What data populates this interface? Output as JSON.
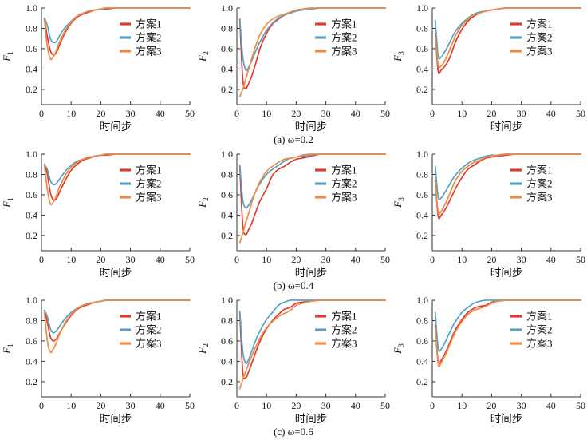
{
  "figure": {
    "background": "#ffffff"
  },
  "chart_data": {
    "type": "line",
    "xlabel": "时间步",
    "legend": [
      "方案1",
      "方案2",
      "方案3"
    ],
    "series_colors": [
      "#df3b2f",
      "#55a2c2",
      "#f08a45"
    ],
    "axis_color": "#333333",
    "text_color": "#111111",
    "xlim": [
      0,
      50
    ],
    "ylim": [
      0.05,
      1.0
    ],
    "xticks": [
      0,
      10,
      20,
      30,
      40,
      50
    ],
    "xtick_labels": [
      "0",
      "10",
      "20",
      "30",
      "40",
      "50"
    ],
    "yticks": [
      0.2,
      0.4,
      0.6,
      0.8,
      1.0
    ],
    "ytick_labels": [
      "0.2",
      "0.4",
      "0.6",
      "0.8",
      "1.0"
    ],
    "legend_position": "top-right",
    "grid": false,
    "captions": [
      "(a) ω=0.2",
      "(b) ω=0.4",
      "(c) ω=0.6"
    ],
    "x": [
      1,
      2,
      3,
      4,
      5,
      6,
      7,
      8,
      10,
      12,
      14,
      16,
      18,
      20,
      22,
      25,
      28,
      30,
      40,
      50
    ],
    "charts": [
      {
        "id": "a-F1",
        "omega": 0.2,
        "ylabel_base": "F",
        "ylabel_sub": "1",
        "series": [
          [
            0.89,
            0.72,
            0.58,
            0.54,
            0.56,
            0.63,
            0.7,
            0.76,
            0.85,
            0.91,
            0.94,
            0.96,
            0.98,
            0.99,
            0.99,
            1.0,
            1.0,
            1.0,
            1.0,
            1.0
          ],
          [
            0.9,
            0.83,
            0.7,
            0.66,
            0.67,
            0.72,
            0.77,
            0.81,
            0.87,
            0.92,
            0.95,
            0.97,
            0.98,
            0.99,
            1.0,
            1.0,
            1.0,
            1.0,
            1.0,
            1.0
          ],
          [
            0.88,
            0.62,
            0.5,
            0.52,
            0.58,
            0.66,
            0.72,
            0.78,
            0.86,
            0.92,
            0.95,
            0.97,
            0.98,
            0.99,
            1.0,
            1.0,
            1.0,
            1.0,
            1.0,
            1.0
          ]
        ]
      },
      {
        "id": "a-F2",
        "omega": 0.2,
        "ylabel_base": "F",
        "ylabel_sub": "2",
        "series": [
          [
            0.89,
            0.3,
            0.21,
            0.26,
            0.33,
            0.42,
            0.52,
            0.62,
            0.75,
            0.84,
            0.89,
            0.93,
            0.95,
            0.97,
            0.98,
            0.99,
            1.0,
            1.0,
            1.0,
            1.0
          ],
          [
            0.88,
            0.52,
            0.39,
            0.42,
            0.48,
            0.55,
            0.62,
            0.68,
            0.78,
            0.85,
            0.9,
            0.93,
            0.95,
            0.97,
            0.98,
            0.99,
            1.0,
            1.0,
            1.0,
            1.0
          ],
          [
            0.13,
            0.2,
            0.3,
            0.4,
            0.5,
            0.6,
            0.68,
            0.75,
            0.84,
            0.89,
            0.92,
            0.94,
            0.96,
            0.98,
            0.99,
            1.0,
            1.0,
            1.0,
            1.0,
            1.0
          ]
        ]
      },
      {
        "id": "a-F3",
        "omega": 0.2,
        "ylabel_base": "F",
        "ylabel_sub": "3",
        "series": [
          [
            0.75,
            0.38,
            0.39,
            0.42,
            0.46,
            0.52,
            0.6,
            0.68,
            0.79,
            0.87,
            0.92,
            0.95,
            0.97,
            0.98,
            0.99,
            1.0,
            1.0,
            1.0,
            1.0,
            1.0
          ],
          [
            0.88,
            0.53,
            0.52,
            0.56,
            0.61,
            0.67,
            0.73,
            0.78,
            0.85,
            0.9,
            0.94,
            0.96,
            0.97,
            0.98,
            0.99,
            1.0,
            1.0,
            1.0,
            1.0,
            1.0
          ],
          [
            0.72,
            0.44,
            0.43,
            0.47,
            0.53,
            0.6,
            0.67,
            0.74,
            0.83,
            0.89,
            0.93,
            0.95,
            0.97,
            0.98,
            0.99,
            1.0,
            1.0,
            1.0,
            1.0,
            1.0
          ]
        ]
      },
      {
        "id": "b-F1",
        "omega": 0.4,
        "ylabel_base": "F",
        "ylabel_sub": "1",
        "series": [
          [
            0.9,
            0.8,
            0.62,
            0.55,
            0.56,
            0.62,
            0.68,
            0.74,
            0.84,
            0.9,
            0.94,
            0.96,
            0.98,
            0.99,
            0.99,
            1.0,
            1.0,
            1.0,
            1.0,
            1.0
          ],
          [
            0.9,
            0.85,
            0.74,
            0.7,
            0.71,
            0.75,
            0.79,
            0.83,
            0.89,
            0.93,
            0.95,
            0.97,
            0.98,
            0.99,
            1.0,
            1.0,
            1.0,
            1.0,
            1.0,
            1.0
          ],
          [
            0.89,
            0.65,
            0.51,
            0.53,
            0.59,
            0.67,
            0.73,
            0.79,
            0.87,
            0.92,
            0.95,
            0.97,
            0.98,
            0.99,
            1.0,
            1.0,
            1.0,
            1.0,
            1.0,
            1.0
          ]
        ]
      },
      {
        "id": "b-F2",
        "omega": 0.4,
        "ylabel_base": "F",
        "ylabel_sub": "2",
        "series": [
          [
            0.88,
            0.3,
            0.21,
            0.26,
            0.32,
            0.4,
            0.48,
            0.55,
            0.66,
            0.79,
            0.85,
            0.88,
            0.92,
            0.95,
            0.96,
            0.98,
            1.0,
            1.0,
            1.0,
            1.0
          ],
          [
            0.89,
            0.55,
            0.47,
            0.5,
            0.55,
            0.61,
            0.67,
            0.72,
            0.8,
            0.85,
            0.89,
            0.93,
            0.96,
            0.97,
            0.98,
            0.99,
            1.0,
            1.0,
            1.0,
            1.0
          ],
          [
            0.13,
            0.22,
            0.33,
            0.42,
            0.52,
            0.61,
            0.68,
            0.74,
            0.83,
            0.88,
            0.92,
            0.95,
            0.96,
            0.97,
            0.99,
            1.0,
            1.0,
            1.0,
            1.0,
            1.0
          ]
        ]
      },
      {
        "id": "b-F3",
        "omega": 0.4,
        "ylabel_base": "F",
        "ylabel_sub": "3",
        "series": [
          [
            0.74,
            0.39,
            0.4,
            0.44,
            0.49,
            0.55,
            0.61,
            0.67,
            0.77,
            0.85,
            0.89,
            0.93,
            0.96,
            0.97,
            0.98,
            0.99,
            1.0,
            1.0,
            1.0,
            1.0
          ],
          [
            0.88,
            0.58,
            0.57,
            0.61,
            0.66,
            0.71,
            0.76,
            0.8,
            0.86,
            0.91,
            0.94,
            0.96,
            0.98,
            0.99,
            0.99,
            1.0,
            1.0,
            1.0,
            1.0,
            1.0
          ],
          [
            0.73,
            0.43,
            0.44,
            0.49,
            0.55,
            0.62,
            0.69,
            0.75,
            0.83,
            0.88,
            0.92,
            0.94,
            0.97,
            0.98,
            0.99,
            1.0,
            1.0,
            1.0,
            1.0,
            1.0
          ]
        ]
      },
      {
        "id": "c-F1",
        "omega": 0.6,
        "ylabel_base": "F",
        "ylabel_sub": "1",
        "series": [
          [
            0.9,
            0.78,
            0.64,
            0.6,
            0.62,
            0.67,
            0.72,
            0.77,
            0.85,
            0.91,
            0.94,
            0.96,
            0.98,
            0.99,
            1.0,
            1.0,
            1.0,
            1.0,
            1.0,
            1.0
          ],
          [
            0.9,
            0.84,
            0.72,
            0.68,
            0.7,
            0.74,
            0.78,
            0.82,
            0.88,
            0.92,
            0.95,
            0.97,
            0.98,
            0.99,
            1.0,
            1.0,
            1.0,
            1.0,
            1.0,
            1.0
          ],
          [
            0.88,
            0.6,
            0.49,
            0.52,
            0.58,
            0.66,
            0.72,
            0.78,
            0.86,
            0.92,
            0.95,
            0.97,
            0.98,
            0.99,
            1.0,
            1.0,
            1.0,
            1.0,
            1.0,
            1.0
          ]
        ]
      },
      {
        "id": "c-F2",
        "omega": 0.6,
        "ylabel_base": "F",
        "ylabel_sub": "2",
        "series": [
          [
            0.88,
            0.3,
            0.24,
            0.3,
            0.38,
            0.46,
            0.54,
            0.61,
            0.72,
            0.8,
            0.86,
            0.91,
            0.93,
            0.97,
            0.98,
            0.99,
            1.0,
            1.0,
            1.0,
            1.0
          ],
          [
            0.89,
            0.5,
            0.38,
            0.42,
            0.5,
            0.58,
            0.65,
            0.71,
            0.81,
            0.88,
            0.95,
            0.98,
            1.0,
            1.0,
            1.0,
            1.0,
            1.0,
            1.0,
            1.0,
            1.0
          ],
          [
            0.13,
            0.22,
            0.3,
            0.38,
            0.45,
            0.52,
            0.58,
            0.64,
            0.73,
            0.79,
            0.84,
            0.87,
            0.9,
            0.95,
            0.97,
            0.99,
            1.0,
            1.0,
            1.0,
            1.0
          ]
        ]
      },
      {
        "id": "c-F3",
        "omega": 0.6,
        "ylabel_base": "F",
        "ylabel_sub": "3",
        "series": [
          [
            0.75,
            0.4,
            0.41,
            0.46,
            0.52,
            0.59,
            0.66,
            0.72,
            0.81,
            0.88,
            0.92,
            0.94,
            0.95,
            0.98,
            0.99,
            1.0,
            1.0,
            1.0,
            1.0,
            1.0
          ],
          [
            0.88,
            0.53,
            0.52,
            0.57,
            0.63,
            0.69,
            0.75,
            0.8,
            0.88,
            0.93,
            0.97,
            0.99,
            1.0,
            1.0,
            1.0,
            1.0,
            1.0,
            1.0,
            1.0,
            1.0
          ],
          [
            0.73,
            0.37,
            0.39,
            0.44,
            0.5,
            0.57,
            0.64,
            0.7,
            0.79,
            0.86,
            0.9,
            0.92,
            0.94,
            0.97,
            0.99,
            1.0,
            1.0,
            1.0,
            1.0,
            1.0
          ]
        ]
      }
    ]
  }
}
